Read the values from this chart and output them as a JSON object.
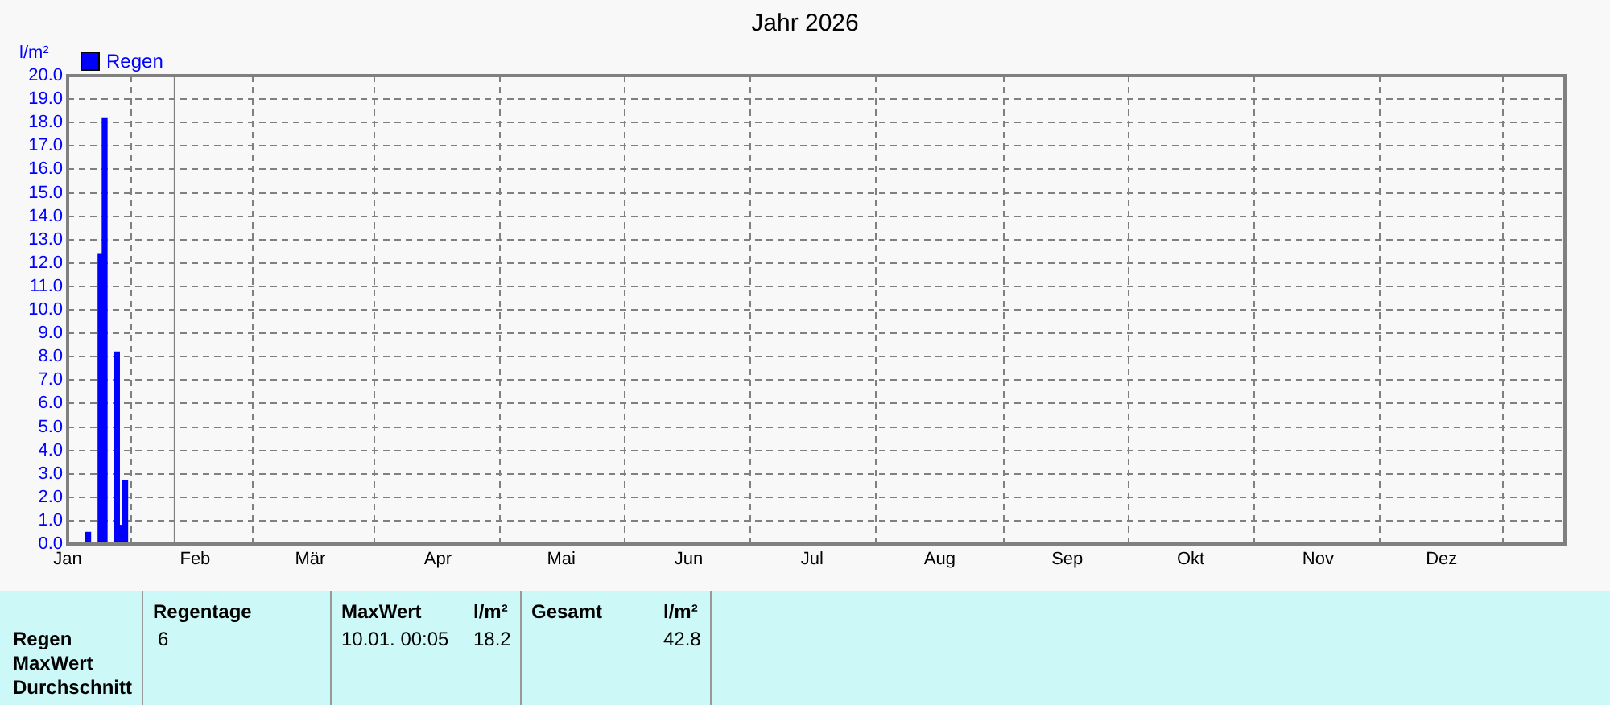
{
  "chart_data": {
    "type": "bar",
    "title": "Jahr 2026",
    "ylabel": "l/m²",
    "x": [
      "2026-01-06",
      "2026-01-09",
      "2026-01-10",
      "2026-01-13",
      "2026-01-14",
      "2026-01-15"
    ],
    "series": [
      {
        "name": "Regen",
        "color": "#0000ff",
        "values": [
          0.5,
          12.4,
          18.2,
          8.2,
          0.8,
          2.7
        ]
      }
    ],
    "xlim": [
      "2026-01-01",
      "2026-12-31"
    ],
    "xticks": [
      {
        "value": "2026-01-01",
        "label": "Jan"
      },
      {
        "value": "2026-02-01",
        "label": "Feb"
      },
      {
        "value": "2026-03-01",
        "label": "Mär"
      },
      {
        "value": "2026-04-01",
        "label": "Apr"
      },
      {
        "value": "2026-05-01",
        "label": "Mai"
      },
      {
        "value": "2026-06-01",
        "label": "Jun"
      },
      {
        "value": "2026-07-01",
        "label": "Jul"
      },
      {
        "value": "2026-08-01",
        "label": "Aug"
      },
      {
        "value": "2026-09-01",
        "label": "Sep"
      },
      {
        "value": "2026-10-01",
        "label": "Okt"
      },
      {
        "value": "2026-11-01",
        "label": "Nov"
      },
      {
        "value": "2026-12-01",
        "label": "Dez"
      }
    ],
    "ylim": [
      0,
      20
    ],
    "yticks": [
      {
        "value": 0,
        "label": "0.0"
      },
      {
        "value": 1,
        "label": "1.0"
      },
      {
        "value": 2,
        "label": "2.0"
      },
      {
        "value": 3,
        "label": "3.0"
      },
      {
        "value": 4,
        "label": "4.0"
      },
      {
        "value": 5,
        "label": "5.0"
      },
      {
        "value": 6,
        "label": "6.0"
      },
      {
        "value": 7,
        "label": "7.0"
      },
      {
        "value": 8,
        "label": "8.0"
      },
      {
        "value": 9,
        "label": "9.0"
      },
      {
        "value": 10,
        "label": "10.0"
      },
      {
        "value": 11,
        "label": "11.0"
      },
      {
        "value": 12,
        "label": "12.0"
      },
      {
        "value": 13,
        "label": "13.0"
      },
      {
        "value": 14,
        "label": "14.0"
      },
      {
        "value": 15,
        "label": "15.0"
      },
      {
        "value": 16,
        "label": "16.0"
      },
      {
        "value": 17,
        "label": "17.0"
      },
      {
        "value": 18,
        "label": "18.0"
      },
      {
        "value": 19,
        "label": "19.0"
      },
      {
        "value": 20,
        "label": "20.0"
      }
    ],
    "ref_lines": [
      {
        "axis": "x",
        "value": "2026-01-27",
        "color": "#808080"
      }
    ],
    "grid": true,
    "legend": "top left",
    "line_style": "dashed",
    "annotations": [
      "Regen",
      "MaxWert",
      "Durchschnitt",
      "Regentage",
      "6",
      "MaxWert",
      "l/m²",
      "10.01.  00:05",
      "18.2",
      "Gesamt",
      "l/m²",
      "42.8"
    ]
  }
}
